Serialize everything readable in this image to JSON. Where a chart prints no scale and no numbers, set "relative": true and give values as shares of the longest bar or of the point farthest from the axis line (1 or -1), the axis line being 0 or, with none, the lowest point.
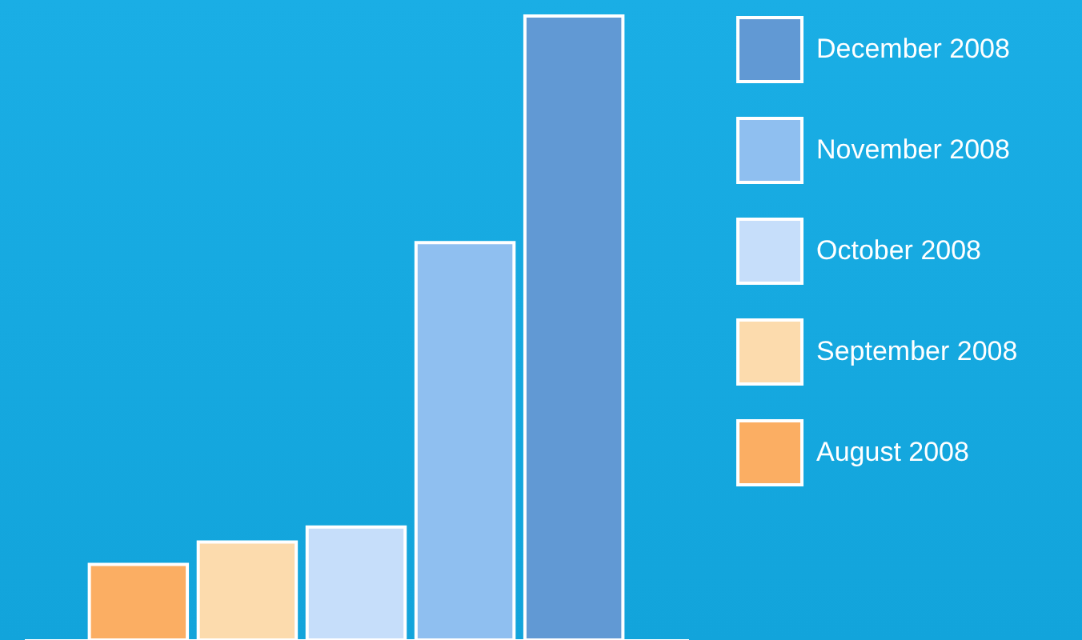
{
  "chart_data": {
    "type": "bar",
    "relative": true,
    "categories": [
      null,
      null,
      null,
      null,
      null
    ],
    "legend": "top right",
    "grid": false,
    "stacked": true,
    "series": [
      {
        "name": "December 2008",
        "color": "#6199d4",
        "values": [
          null,
          null,
          null,
          null,
          1
        ]
      },
      {
        "name": "November 2008",
        "color": "#8fbff0",
        "values": [
          null,
          null,
          null,
          0.637,
          null
        ]
      },
      {
        "name": "October 2008",
        "color": "#c6defa",
        "values": [
          null,
          null,
          0.181,
          null,
          null
        ]
      },
      {
        "name": "September 2008",
        "color": "#fcdbad",
        "values": [
          null,
          0.157,
          null,
          null,
          null
        ]
      },
      {
        "name": "August 2008",
        "color": "#fbae63",
        "values": [
          0.121,
          null,
          null,
          null,
          null
        ]
      }
    ]
  }
}
